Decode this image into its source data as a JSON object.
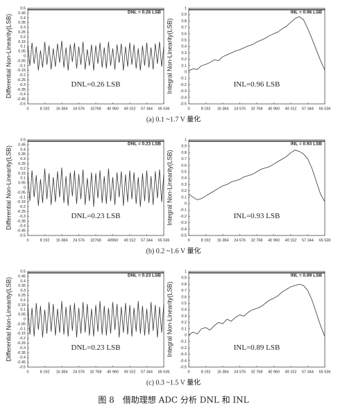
{
  "chart_data": [
    {
      "type": "line",
      "ylabel": "Differential Non-Linearity(LSB)",
      "box_label": "DNL = 0.26 LSB",
      "annotation": "DNL=0.26 LSB",
      "color": "#333333",
      "x": [
        0,
        1024,
        2048,
        3072,
        4096,
        5120,
        6144,
        7168,
        8192,
        9216,
        10240,
        11264,
        12288,
        13312,
        14336,
        15360,
        16384,
        17408,
        18432,
        19456,
        20480,
        21504,
        22528,
        23552,
        24576,
        25600,
        26624,
        27648,
        28672,
        29696,
        30720,
        31744,
        32768,
        33792,
        34816,
        35840,
        36864,
        37888,
        38912,
        39936,
        40960,
        41984,
        43008,
        44032,
        45056,
        46080,
        47104,
        48128,
        49152,
        50176,
        51200,
        52224,
        53248,
        54272,
        55296,
        56320,
        57344,
        58368,
        59392,
        60416,
        61440,
        62464,
        63488,
        64512,
        65536
      ],
      "values": [
        0.12,
        -0.1,
        0.14,
        -0.08,
        0.1,
        -0.15,
        0.06,
        -0.12,
        0.15,
        -0.09,
        0.11,
        -0.14,
        0.08,
        -0.11,
        0.13,
        -0.07,
        0.16,
        -0.12,
        0.09,
        -0.15,
        0.12,
        -0.06,
        0.14,
        -0.13,
        0.1,
        -0.09,
        0.15,
        -0.14,
        0.07,
        -0.1,
        0.12,
        -0.15,
        0.11,
        -0.08,
        0.14,
        -0.12,
        0.09,
        -0.13,
        0.15,
        -0.1,
        0.08,
        -0.14,
        0.12,
        -0.07,
        0.13,
        -0.15,
        0.1,
        -0.11,
        0.14,
        -0.09,
        0.12,
        -0.13,
        0.08,
        -0.15,
        0.11,
        -0.1,
        0.14,
        -0.12,
        0.09,
        -0.14,
        0.13,
        -0.08,
        0.15,
        -0.11,
        0.1
      ],
      "xlim": [
        0,
        65536
      ],
      "ylim": [
        -0.5,
        0.5
      ],
      "xticks": [
        0,
        {
          "value": 8192,
          "label": "8 192"
        },
        {
          "value": 16384,
          "label": "16 384"
        },
        {
          "value": 24576,
          "label": "24 576"
        },
        {
          "value": 32768,
          "label": "32768"
        },
        {
          "value": 40960,
          "label": "40 960"
        },
        {
          "value": 49152,
          "label": "49 152"
        },
        {
          "value": 57344,
          "label": "57 344"
        },
        {
          "value": 65536,
          "label": "65 536"
        }
      ],
      "yticks": [
        0.5,
        0.45,
        0.4,
        0.35,
        0.3,
        0.25,
        0.2,
        0.15,
        0.1,
        0.05,
        0,
        -0.05,
        -0.1,
        -0.15,
        -0.2,
        -0.25,
        -0.3,
        -0.35,
        -0.4,
        -0.45,
        -0.5
      ]
    },
    {
      "type": "line",
      "ylabel": "Integral Non-Linearity(LSB)",
      "box_label": "INL = 0.96 LSB",
      "annotation": "INL=0.96 LSB",
      "color": "#333333",
      "x": [
        0,
        2048,
        4096,
        6144,
        8192,
        10240,
        12288,
        14336,
        16384,
        18432,
        20480,
        22528,
        24576,
        26624,
        28672,
        30720,
        32768,
        34816,
        36864,
        38912,
        40960,
        43008,
        45056,
        47104,
        49152,
        51200,
        53248,
        55296,
        57344,
        59392,
        61440,
        63488,
        65536
      ],
      "values": [
        0.02,
        0.05,
        0.04,
        0.1,
        0.12,
        0.15,
        0.19,
        0.18,
        0.24,
        0.27,
        0.3,
        0.33,
        0.35,
        0.38,
        0.41,
        0.43,
        0.47,
        0.5,
        0.53,
        0.57,
        0.6,
        0.63,
        0.68,
        0.72,
        0.78,
        0.84,
        0.87,
        0.82,
        0.68,
        0.52,
        0.35,
        0.18,
        0.03
      ],
      "xlim": [
        0,
        65536
      ],
      "ylim": [
        -0.5,
        1
      ],
      "xticks": [
        0,
        {
          "value": 8192,
          "label": "8 192"
        },
        {
          "value": 16384,
          "label": "16 384"
        },
        {
          "value": 24576,
          "label": "24 576"
        },
        {
          "value": 32768,
          "label": "32 768"
        },
        {
          "value": 40960,
          "label": "40 960"
        },
        {
          "value": 49152,
          "label": "49 152"
        },
        {
          "value": 57344,
          "label": "57 344"
        },
        {
          "value": 65536,
          "label": "65 536"
        }
      ],
      "yticks": [
        1,
        0.9,
        0.8,
        0.7,
        0.6,
        0.5,
        0.4,
        0.3,
        0.2,
        0.1,
        0,
        -0.1,
        -0.2,
        -0.3,
        -0.4,
        -0.5
      ]
    },
    {
      "type": "line",
      "ylabel": "Differential Non-Linearity(LSB)",
      "box_label": "DNL = 0.23 LSB",
      "annotation": "DNL=0.23 LSB",
      "color": "#333333",
      "x": [
        0,
        1024,
        2048,
        3072,
        4096,
        5120,
        6144,
        7168,
        8192,
        9216,
        10240,
        11264,
        12288,
        13312,
        14336,
        15360,
        16384,
        17408,
        18432,
        19456,
        20480,
        21504,
        22528,
        23552,
        24576,
        25600,
        26624,
        27648,
        28672,
        29696,
        30720,
        31744,
        32768,
        33792,
        34816,
        35840,
        36864,
        37888,
        38912,
        39936,
        40960,
        41984,
        43008,
        44032,
        45056,
        46080,
        47104,
        48128,
        49152,
        50176,
        51200,
        52224,
        53248,
        54272,
        55296,
        56320,
        57344,
        58368,
        59392,
        60416,
        61440,
        62464,
        63488,
        64512,
        65536
      ],
      "values": [
        0.16,
        -0.14,
        0.18,
        -0.1,
        0.13,
        -0.19,
        0.09,
        -0.16,
        0.2,
        -0.12,
        0.15,
        -0.18,
        0.11,
        -0.15,
        0.17,
        -0.1,
        0.21,
        -0.16,
        0.12,
        -0.19,
        0.16,
        -0.09,
        0.18,
        -0.17,
        0.14,
        -0.12,
        0.19,
        -0.18,
        0.1,
        -0.14,
        0.16,
        -0.2,
        0.15,
        -0.11,
        0.18,
        -0.16,
        0.12,
        -0.17,
        0.2,
        -0.14,
        0.11,
        -0.18,
        0.16,
        -0.1,
        0.17,
        -0.19,
        0.14,
        -0.15,
        0.18,
        -0.12,
        0.16,
        -0.17,
        0.11,
        -0.2,
        0.15,
        -0.14,
        0.18,
        -0.16,
        0.12,
        -0.18,
        0.17,
        -0.11,
        0.19,
        -0.15,
        0.14
      ],
      "xlim": [
        0,
        65536
      ],
      "ylim": [
        -0.5,
        0.5
      ],
      "xticks": [
        0,
        {
          "value": 8192,
          "label": "8 192"
        },
        {
          "value": 16384,
          "label": "16 384"
        },
        {
          "value": 24576,
          "label": "24 576"
        },
        {
          "value": 32768,
          "label": "32768"
        },
        {
          "value": 40960,
          "label": "40960"
        },
        {
          "value": 49152,
          "label": "49 152"
        },
        {
          "value": 57344,
          "label": "57 344"
        },
        {
          "value": 65536,
          "label": "65 536"
        }
      ],
      "yticks": [
        0.5,
        0.45,
        0.4,
        0.35,
        0.3,
        0.25,
        0.2,
        0.15,
        0.1,
        0.05,
        0,
        -0.05,
        -0.1,
        -0.15,
        -0.2,
        -0.25,
        -0.3,
        -0.35,
        -0.4,
        -0.45,
        -0.5
      ]
    },
    {
      "type": "line",
      "ylabel": "Integral Non-Linearity(LSB)",
      "box_label": "INL = 0.93 LSB",
      "annotation": "INL=0.93 LSB",
      "color": "#333333",
      "x": [
        0,
        2048,
        4096,
        6144,
        8192,
        10240,
        12288,
        14336,
        16384,
        18432,
        20480,
        22528,
        24576,
        26624,
        28672,
        30720,
        32768,
        34816,
        36864,
        38912,
        40960,
        43008,
        45056,
        47104,
        49152,
        51200,
        53248,
        55296,
        57344,
        59392,
        61440,
        63488,
        65536
      ],
      "values": [
        0.15,
        0.1,
        0.06,
        0.08,
        0.12,
        0.16,
        0.2,
        0.24,
        0.28,
        0.3,
        0.34,
        0.36,
        0.38,
        0.42,
        0.44,
        0.46,
        0.5,
        0.54,
        0.56,
        0.58,
        0.62,
        0.66,
        0.7,
        0.74,
        0.8,
        0.84,
        0.82,
        0.78,
        0.7,
        0.55,
        0.35,
        0.15,
        0.03
      ],
      "xlim": [
        0,
        65536
      ],
      "ylim": [
        -0.5,
        1
      ],
      "xticks": [
        0,
        {
          "value": 8192,
          "label": "8 192"
        },
        {
          "value": 16384,
          "label": "16 384"
        },
        {
          "value": 24576,
          "label": "24 576"
        },
        {
          "value": 32768,
          "label": "32 768"
        },
        {
          "value": 40960,
          "label": "40 960"
        },
        {
          "value": 49152,
          "label": "49 152"
        },
        {
          "value": 57344,
          "label": "57 344"
        },
        {
          "value": 65536,
          "label": "65 536"
        }
      ],
      "yticks": [
        1,
        0.9,
        0.8,
        0.7,
        0.6,
        0.5,
        0.4,
        0.3,
        0.2,
        0.1,
        0,
        -0.1,
        -0.2,
        -0.3,
        -0.4,
        -0.5
      ]
    },
    {
      "type": "line",
      "ylabel": "Differential Non-Linearity(LSB)",
      "box_label": "DNL = 0.23 LSB",
      "annotation": "DNL=0.23 LSB",
      "color": "#333333",
      "x": [
        0,
        1024,
        2048,
        3072,
        4096,
        5120,
        6144,
        7168,
        8192,
        9216,
        10240,
        11264,
        12288,
        13312,
        14336,
        15360,
        16384,
        17408,
        18432,
        19456,
        20480,
        21504,
        22528,
        23552,
        24576,
        25600,
        26624,
        27648,
        28672,
        29696,
        30720,
        31744,
        32768,
        33792,
        34816,
        35840,
        36864,
        37888,
        38912,
        39936,
        40960,
        41984,
        43008,
        44032,
        45056,
        46080,
        47104,
        48128,
        49152,
        50176,
        51200,
        52224,
        53248,
        54272,
        55296,
        56320,
        57344,
        58368,
        59392,
        60416,
        61440,
        62464,
        63488,
        64512,
        65536
      ],
      "values": [
        0.15,
        -0.16,
        0.12,
        -0.18,
        0.17,
        -0.11,
        0.14,
        -0.19,
        0.1,
        -0.15,
        0.18,
        -0.13,
        0.16,
        -0.17,
        0.11,
        -0.14,
        0.19,
        -0.16,
        0.13,
        -0.18,
        0.15,
        -0.12,
        0.17,
        -0.19,
        0.12,
        -0.15,
        0.18,
        -0.14,
        0.16,
        -0.17,
        0.11,
        -0.18,
        0.15,
        -0.13,
        0.19,
        -0.16,
        0.14,
        -0.17,
        0.12,
        -0.15,
        0.18,
        -0.11,
        0.16,
        -0.19,
        0.13,
        -0.14,
        0.17,
        -0.16,
        0.15,
        -0.18,
        0.12,
        -0.13,
        0.19,
        -0.15,
        0.14,
        -0.17,
        0.11,
        -0.16,
        0.18,
        -0.12,
        0.15,
        -0.19,
        0.13,
        -0.14,
        0.16
      ],
      "xlim": [
        0,
        65536
      ],
      "ylim": [
        -0.5,
        0.5
      ],
      "xticks": [
        0,
        {
          "value": 8192,
          "label": "8 192"
        },
        {
          "value": 16384,
          "label": "16 384"
        },
        {
          "value": 24576,
          "label": "24 576"
        },
        {
          "value": 32768,
          "label": "32 768"
        },
        {
          "value": 40960,
          "label": "40 960"
        },
        {
          "value": 49152,
          "label": "49 152"
        },
        {
          "value": 57344,
          "label": "57 344"
        },
        {
          "value": 65536,
          "label": "65 536"
        }
      ],
      "yticks": [
        0.5,
        0.45,
        0.4,
        0.35,
        0.3,
        0.25,
        0.2,
        0.15,
        0.1,
        0.05,
        0,
        -0.05,
        -0.1,
        -0.15,
        -0.2,
        -0.25,
        -0.3,
        -0.35,
        -0.4,
        -0.45,
        -0.5
      ]
    },
    {
      "type": "line",
      "ylabel": "Integral Non-Linearity(LSB)",
      "box_label": "INL = 0.89 LSB",
      "annotation": "INL=0.89 LSB",
      "color": "#333333",
      "x": [
        0,
        2048,
        4096,
        6144,
        8192,
        10240,
        12288,
        14336,
        16384,
        18432,
        20480,
        22528,
        24576,
        26624,
        28672,
        30720,
        32768,
        34816,
        36864,
        38912,
        40960,
        43008,
        45056,
        47104,
        49152,
        51200,
        53248,
        55296,
        57344,
        59392,
        61440,
        63488,
        65536
      ],
      "values": [
        0.0,
        0.05,
        0.02,
        0.1,
        0.12,
        0.08,
        0.15,
        0.2,
        0.18,
        0.25,
        0.22,
        0.28,
        0.32,
        0.3,
        0.36,
        0.4,
        0.42,
        0.45,
        0.5,
        0.55,
        0.58,
        0.62,
        0.68,
        0.72,
        0.76,
        0.78,
        0.8,
        0.78,
        0.7,
        0.55,
        0.35,
        0.15,
        -0.02
      ],
      "xlim": [
        0,
        65536
      ],
      "ylim": [
        -0.5,
        1
      ],
      "xticks": [
        0,
        {
          "value": 8192,
          "label": "8 192"
        },
        {
          "value": 16384,
          "label": "16 384"
        },
        {
          "value": 24576,
          "label": "24 576"
        },
        {
          "value": 32768,
          "label": "32 768"
        },
        {
          "value": 40960,
          "label": "40 960"
        },
        {
          "value": 49152,
          "label": "49 152"
        },
        {
          "value": 57344,
          "label": "57 344"
        },
        {
          "value": 65536,
          "label": "65 536"
        }
      ],
      "yticks": [
        1,
        0.9,
        0.8,
        0.7,
        0.6,
        0.5,
        0.4,
        0.3,
        0.2,
        0.1,
        0,
        -0.1,
        -0.2,
        -0.3,
        -0.4,
        -0.5
      ]
    }
  ],
  "subcaptions": [
    "(a) 0.1 ~1.7 V 量化",
    "(b) 0.2 ~1.6 V 量化",
    "(c) 0.3 ~1.5 V 量化"
  ],
  "caption": "图 8　借助理想 ADC 分析 DNL 和 INL"
}
